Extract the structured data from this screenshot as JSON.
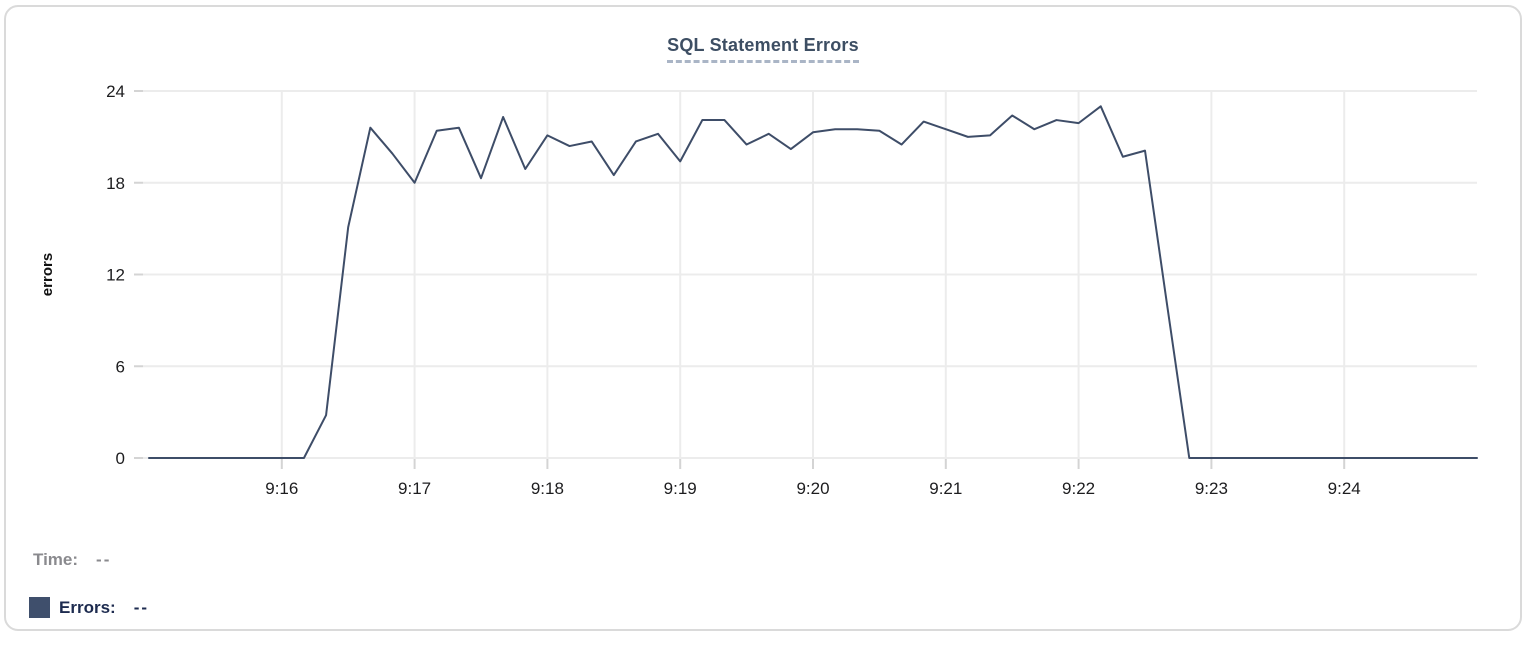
{
  "footer": {
    "time_label": "Time:",
    "time_value": "--",
    "errors_label": "Errors:",
    "errors_value": "--",
    "swatch_color": "#3f4f6c"
  },
  "colors": {
    "line": "#3e4d68",
    "title": "#3d4e63",
    "title_underline": "#aab5c6",
    "grid": "#ececec",
    "tick": "#d4d4d4",
    "axis_text": "#1d1d1f",
    "card_border": "#dadada"
  },
  "chart_data": {
    "type": "line",
    "title": "SQL Statement Errors",
    "xlabel": "",
    "ylabel": "errors",
    "grid": true,
    "legend_position": "bottom-left",
    "x_start_time": "9:15",
    "x_end_time": "9:25",
    "x_range_seconds": [
      0,
      600
    ],
    "x_tick_labels": [
      "9:16",
      "9:17",
      "9:18",
      "9:19",
      "9:20",
      "9:21",
      "9:22",
      "9:23",
      "9:24"
    ],
    "x_tick_seconds": [
      60,
      120,
      180,
      240,
      300,
      360,
      420,
      480,
      540
    ],
    "y_ticks": [
      0,
      6,
      12,
      18,
      24
    ],
    "y_range": [
      0,
      24
    ],
    "series": [
      {
        "name": "Errors",
        "color": "#3e4d68",
        "x_seconds": [
          0,
          10,
          20,
          30,
          40,
          50,
          60,
          70,
          80,
          90,
          100,
          110,
          120,
          130,
          140,
          150,
          160,
          170,
          180,
          190,
          200,
          210,
          220,
          230,
          240,
          250,
          260,
          270,
          280,
          290,
          300,
          310,
          320,
          330,
          340,
          350,
          360,
          370,
          380,
          390,
          400,
          410,
          420,
          430,
          440,
          450,
          460,
          470,
          480,
          490,
          500,
          510,
          520,
          530,
          540,
          550,
          560,
          570,
          580,
          590,
          600
        ],
        "values": [
          0,
          0,
          0,
          0,
          0,
          0,
          0,
          0,
          2.8,
          15.1,
          21.6,
          19.9,
          18,
          21.4,
          21.6,
          18.3,
          22.3,
          18.9,
          21.1,
          20.4,
          20.7,
          18.5,
          20.7,
          21.2,
          19.4,
          22.1,
          22.1,
          20.5,
          21.2,
          20.2,
          21.3,
          21.5,
          21.5,
          21.4,
          20.5,
          22,
          21.5,
          21,
          21.1,
          22.4,
          21.5,
          22.1,
          21.9,
          23,
          19.7,
          20.1,
          10,
          0,
          0,
          0,
          0,
          0,
          0,
          0,
          0,
          0,
          0,
          0,
          0,
          0,
          0
        ]
      }
    ]
  }
}
